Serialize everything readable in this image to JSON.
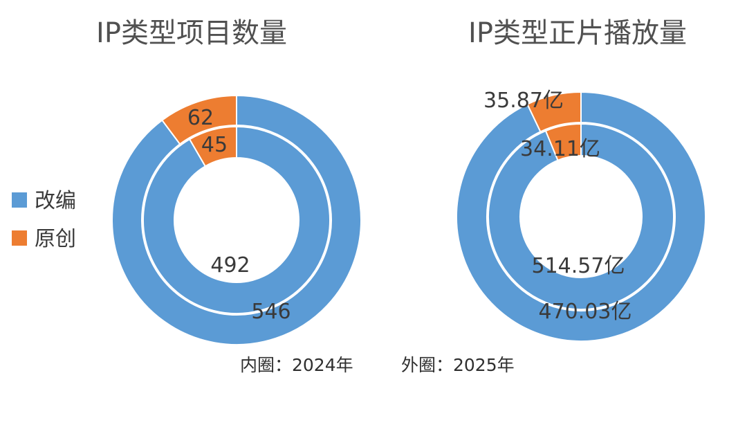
{
  "legend": {
    "items": [
      {
        "label": "改编",
        "color": "#5B9BD5"
      },
      {
        "label": "原创",
        "color": "#ED7D31"
      }
    ]
  },
  "note": {
    "inner": "内圈：2024年",
    "outer": "外圈：2025年"
  },
  "chart_data": [
    {
      "type": "pie",
      "title": "IP类型项目数量",
      "categories": [
        "改编",
        "原创"
      ],
      "series": [
        {
          "name": "2024年",
          "ring": "inner",
          "values": [
            492,
            45
          ],
          "labels": [
            "492",
            "45"
          ]
        },
        {
          "name": "2025年",
          "ring": "outer",
          "values": [
            546,
            62
          ],
          "labels": [
            "546",
            "62"
          ]
        }
      ],
      "legend": "left"
    },
    {
      "type": "pie",
      "title": "IP类型正片播放量",
      "categories": [
        "改编",
        "原创"
      ],
      "series": [
        {
          "name": "2024年",
          "ring": "inner",
          "values": [
            514.57,
            34.11
          ],
          "labels": [
            "514.57亿",
            "34.11亿"
          ]
        },
        {
          "name": "2025年",
          "ring": "outer",
          "values": [
            470.03,
            35.87
          ],
          "labels": [
            "470.03亿",
            "35.87亿"
          ]
        }
      ],
      "legend": "left"
    }
  ]
}
